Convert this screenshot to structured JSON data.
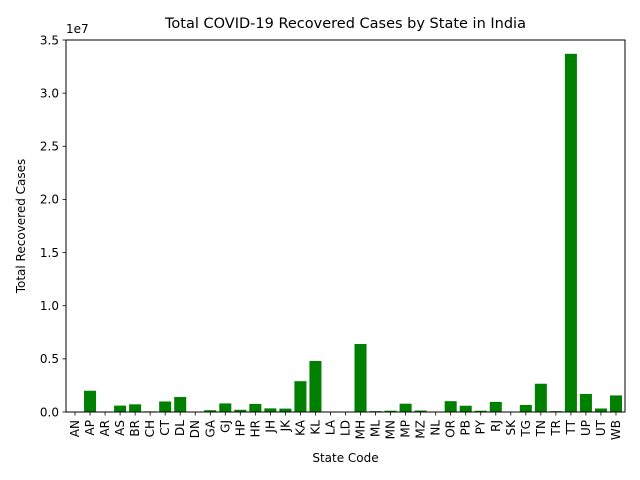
{
  "chart_data": {
    "type": "bar",
    "title": "Total COVID-19 Recovered Cases by State in India",
    "xlabel": "State Code",
    "ylabel": "Total Recovered Cases",
    "y_offset_label": "1e7",
    "ylim": [
      0,
      35000000
    ],
    "yticks": [
      0,
      5000000,
      10000000,
      15000000,
      20000000,
      25000000,
      30000000,
      35000000
    ],
    "ytick_labels": [
      "0.0",
      "0.5",
      "1.0",
      "1.5",
      "2.0",
      "2.5",
      "3.0",
      "3.5"
    ],
    "grid": false,
    "legend": "none",
    "bar_color": "#008000",
    "categories": [
      "AN",
      "AP",
      "AR",
      "AS",
      "BR",
      "CH",
      "CT",
      "DL",
      "DN",
      "GA",
      "GJ",
      "HP",
      "HR",
      "JH",
      "JK",
      "KA",
      "KL",
      "LA",
      "LD",
      "MH",
      "ML",
      "MN",
      "MP",
      "MZ",
      "NL",
      "OR",
      "PB",
      "PY",
      "RJ",
      "SK",
      "TG",
      "TN",
      "TR",
      "TT",
      "UP",
      "UT",
      "WB"
    ],
    "values": [
      7500,
      2000000,
      50000,
      600000,
      720000,
      60000,
      990000,
      1410000,
      10000,
      170000,
      810000,
      210000,
      760000,
      340000,
      320000,
      2900000,
      4800000,
      20000,
      10000,
      6400000,
      80000,
      120000,
      780000,
      140000,
      30000,
      1020000,
      590000,
      120000,
      950000,
      30000,
      660000,
      2660000,
      80000,
      33700000,
      1700000,
      330000,
      1560000
    ]
  }
}
